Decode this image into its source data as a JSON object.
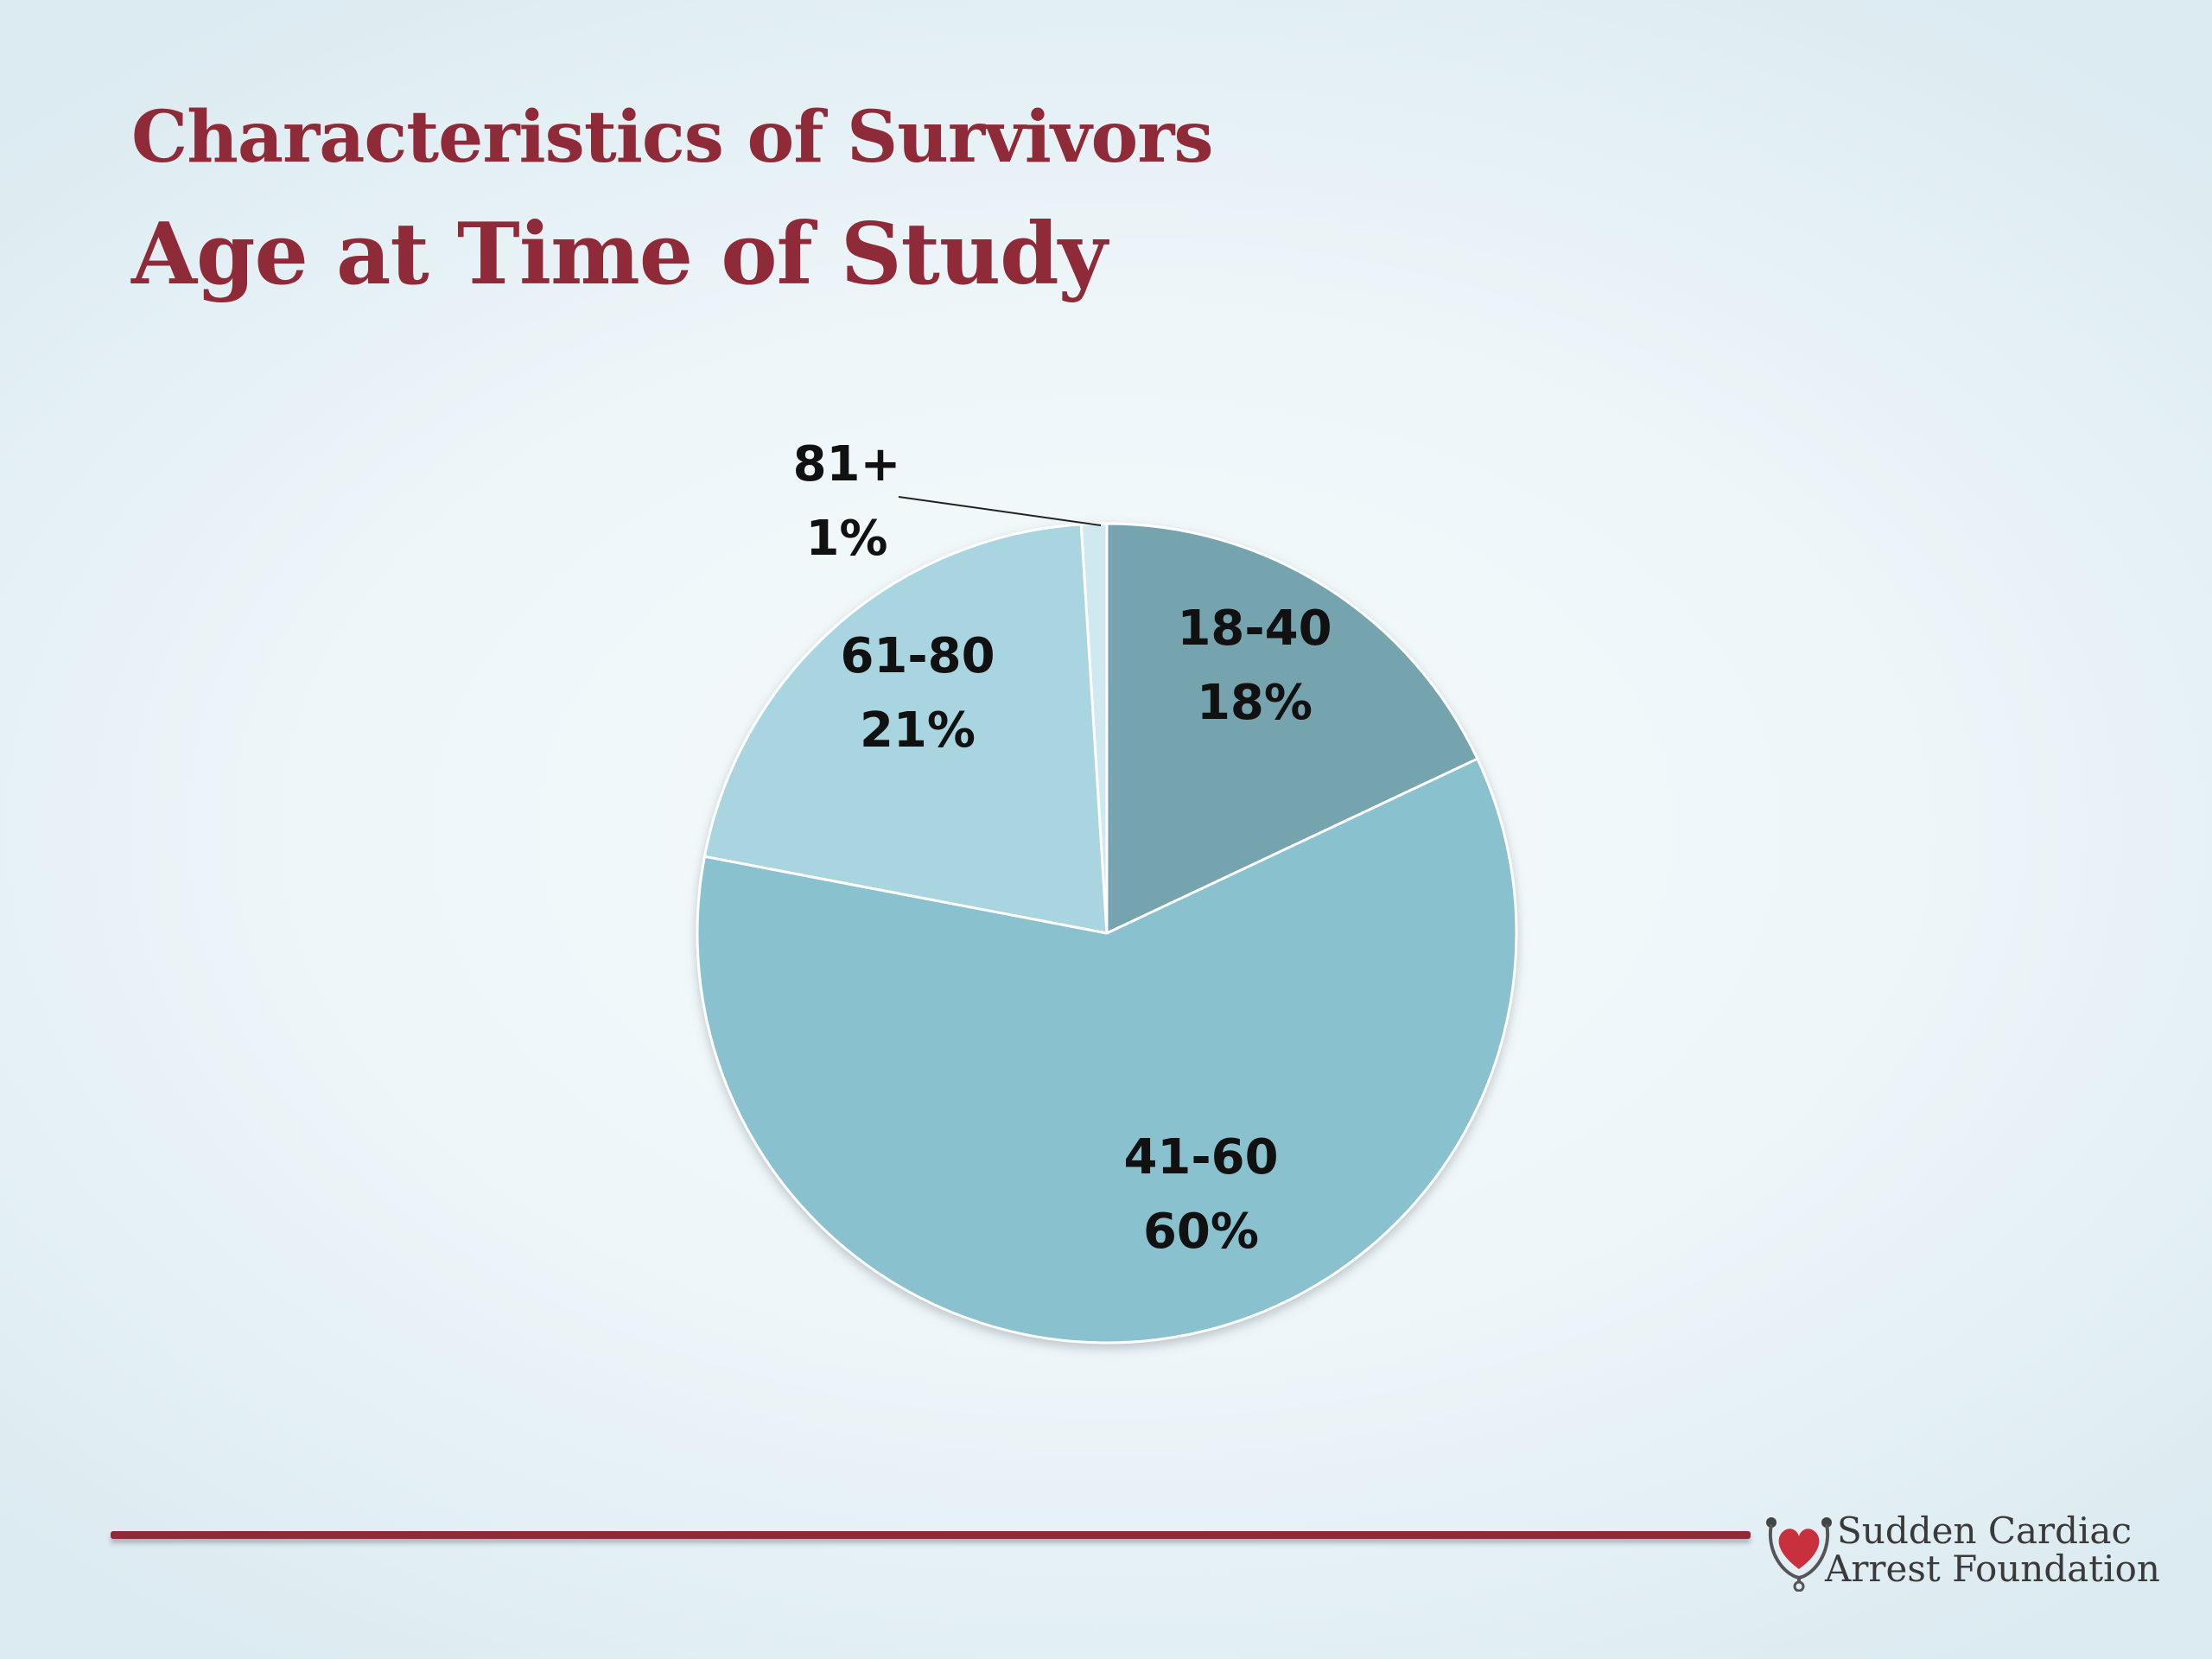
{
  "slide": {
    "title": "Characteristics of Survivors",
    "subtitle": "Age at Time of Study"
  },
  "chart_data": {
    "type": "pie",
    "title": "",
    "categories": [
      "18-40",
      "41-60",
      "61-80",
      "81+"
    ],
    "values": [
      18,
      60,
      21,
      1
    ],
    "value_labels": [
      "18%",
      "60%",
      "21%",
      "1%"
    ],
    "colors": [
      "#74a3ae",
      "#89c1cf",
      "#a9d5e1",
      "#d0e8ef"
    ],
    "start": "12 o'clock, clockwise",
    "legend": "none (category and percent labels on slices)"
  },
  "logo": {
    "line1": "Sudden Cardiac",
    "line2": "Arrest Foundation",
    "heart_color": "#c9303e"
  },
  "colors": {
    "accent": "#8f2a38"
  }
}
